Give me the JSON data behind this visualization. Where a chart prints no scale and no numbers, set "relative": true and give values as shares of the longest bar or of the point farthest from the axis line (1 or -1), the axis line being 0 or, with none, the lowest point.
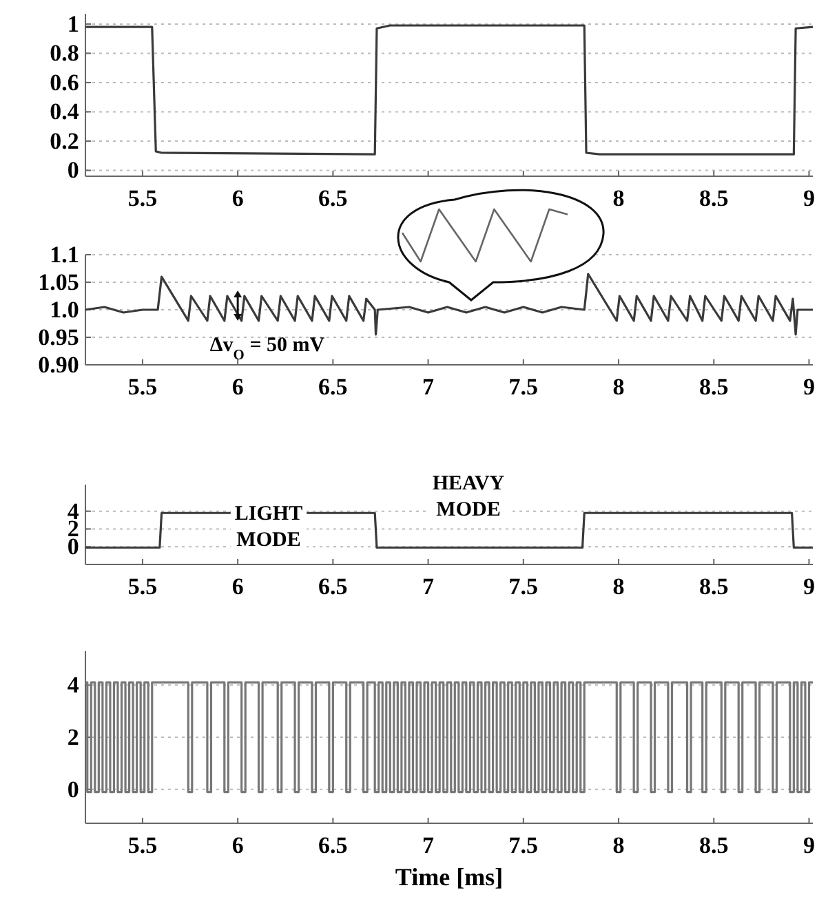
{
  "chart_data": [
    {
      "type": "line",
      "xlim": [
        5.2,
        9.02
      ],
      "xticks": [
        5.5,
        6,
        6.5,
        {
          "value": 7,
          "label": null
        },
        {
          "value": 7.5,
          "label": null
        },
        8,
        8.5,
        9
      ],
      "ylim": [
        -0.04,
        1.07
      ],
      "yticks": [
        0,
        0.2,
        0.4,
        0.6,
        0.8,
        1
      ],
      "grid": "y",
      "series": [
        {
          "color": "#3a3a3a",
          "x": [
            5.2,
            5.55,
            5.57,
            5.6,
            6.72,
            6.73,
            6.8,
            7.82,
            7.83,
            7.9,
            8.92,
            8.93,
            9.02
          ],
          "values": [
            0.98,
            0.98,
            0.13,
            0.12,
            0.11,
            0.97,
            0.99,
            0.99,
            0.12,
            0.11,
            0.11,
            0.97,
            0.98
          ]
        }
      ]
    },
    {
      "type": "line",
      "xlim": [
        5.2,
        9.02
      ],
      "xticks": [
        5.5,
        6,
        6.5,
        7,
        7.5,
        8,
        8.5,
        9
      ],
      "ylim": [
        0.9,
        1.1
      ],
      "yticks": [
        {
          "value": 0.9,
          "label": "0.90"
        },
        0.95,
        {
          "value": 1.0,
          "label": "1.0"
        },
        1.05,
        1.1
      ],
      "grid": "y",
      "annotations": [
        "Δv$_{O}$ = 50 mV"
      ],
      "series": [
        {
          "color": "#3a3a3a",
          "x": [
            5.2,
            5.3,
            5.4,
            5.5,
            5.58,
            5.6,
            5.74,
            5.755,
            5.84,
            5.855,
            5.93,
            5.945,
            6.02,
            6.035,
            6.11,
            6.125,
            6.21,
            6.225,
            6.3,
            6.315,
            6.39,
            6.405,
            6.48,
            6.495,
            6.57,
            6.585,
            6.66,
            6.675,
            6.72,
            6.725,
            6.735,
            6.9,
            7.0,
            7.1,
            7.2,
            7.3,
            7.4,
            7.5,
            7.6,
            7.7,
            7.82,
            7.84,
            7.99,
            8.005,
            8.08,
            8.095,
            8.17,
            8.185,
            8.26,
            8.275,
            8.36,
            8.375,
            8.44,
            8.455,
            8.54,
            8.555,
            8.63,
            8.645,
            8.72,
            8.735,
            8.81,
            8.825,
            8.9,
            8.915,
            8.93,
            8.94,
            9.02
          ],
          "values": [
            1.0,
            1.005,
            0.995,
            1.0,
            1.0,
            1.06,
            0.98,
            1.025,
            0.98,
            1.025,
            0.98,
            1.025,
            0.98,
            1.025,
            0.98,
            1.025,
            0.98,
            1.025,
            0.98,
            1.025,
            0.98,
            1.025,
            0.98,
            1.025,
            0.98,
            1.025,
            0.98,
            1.02,
            1.0,
            0.955,
            1.0,
            1.005,
            0.995,
            1.005,
            0.995,
            1.005,
            0.995,
            1.005,
            0.995,
            1.005,
            1.0,
            1.065,
            0.98,
            1.025,
            0.98,
            1.025,
            0.98,
            1.025,
            0.98,
            1.025,
            0.98,
            1.025,
            0.98,
            1.025,
            0.98,
            1.025,
            0.98,
            1.025,
            0.98,
            1.025,
            0.98,
            1.025,
            0.98,
            1.02,
            0.955,
            1.0,
            1.0
          ]
        }
      ]
    },
    {
      "type": "line",
      "xlim": [
        5.2,
        9.02
      ],
      "xticks": [
        5.5,
        6,
        6.5,
        7,
        7.5,
        8,
        8.5,
        9
      ],
      "ylim": [
        -2,
        7
      ],
      "yticks": [
        0,
        2,
        4
      ],
      "grid": "y",
      "annotations": [
        "LIGHT MODE",
        "HEAVY MODE"
      ],
      "series": [
        {
          "color": "#3a3a3a",
          "x": [
            5.2,
            5.59,
            5.6,
            6.72,
            6.73,
            7.81,
            7.82,
            8.91,
            8.92,
            9.02
          ],
          "values": [
            -0.1,
            -0.1,
            3.8,
            3.8,
            -0.1,
            -0.1,
            3.8,
            3.8,
            -0.1,
            -0.1
          ]
        }
      ]
    },
    {
      "type": "step",
      "xlim": [
        5.2,
        9.02
      ],
      "xticks": [
        5.5,
        6,
        6.5,
        7,
        7.5,
        8,
        8.5,
        9
      ],
      "ylim": [
        -1.3,
        5.3
      ],
      "yticks": [
        0,
        2,
        4
      ],
      "grid": "y",
      "xlabel": "Time  [ms]",
      "series": [
        {
          "color": "#777777",
          "x": [
            5.2,
            5.21,
            5.23,
            5.25,
            5.27,
            5.29,
            5.31,
            5.33,
            5.35,
            5.37,
            5.39,
            5.41,
            5.43,
            5.45,
            5.47,
            5.49,
            5.51,
            5.53,
            5.55,
            5.74,
            5.76,
            5.84,
            5.86,
            5.93,
            5.95,
            6.02,
            6.04,
            6.11,
            6.13,
            6.21,
            6.23,
            6.3,
            6.32,
            6.39,
            6.41,
            6.48,
            6.5,
            6.57,
            6.59,
            6.66,
            6.68,
            6.72,
            6.74,
            6.76,
            6.78,
            6.8,
            6.82,
            6.84,
            6.86,
            6.88,
            6.9,
            6.92,
            6.94,
            6.96,
            6.98,
            7,
            7.02,
            7.04,
            7.06,
            7.08,
            7.1,
            7.12,
            7.14,
            7.16,
            7.18,
            7.2,
            7.22,
            7.24,
            7.26,
            7.28,
            7.3,
            7.32,
            7.34,
            7.36,
            7.38,
            7.4,
            7.42,
            7.44,
            7.46,
            7.48,
            7.5,
            7.52,
            7.54,
            7.56,
            7.58,
            7.6,
            7.62,
            7.64,
            7.66,
            7.68,
            7.7,
            7.72,
            7.74,
            7.76,
            7.78,
            7.8,
            7.82,
            7.99,
            8.01,
            8.08,
            8.1,
            8.17,
            8.19,
            8.26,
            8.28,
            8.36,
            8.38,
            8.44,
            8.46,
            8.54,
            8.56,
            8.63,
            8.65,
            8.72,
            8.74,
            8.81,
            8.83,
            8.9,
            8.92,
            8.94,
            8.96,
            8.98,
            9.0,
            9.02
          ],
          "values": [
            4.1,
            -0.1,
            4.1,
            -0.1,
            4.1,
            -0.1,
            4.1,
            -0.1,
            4.1,
            -0.1,
            4.1,
            -0.1,
            4.1,
            -0.1,
            4.1,
            -0.1,
            4.1,
            -0.1,
            4.1,
            -0.1,
            4.1,
            -0.1,
            4.1,
            -0.1,
            4.1,
            -0.1,
            4.1,
            -0.1,
            4.1,
            -0.1,
            4.1,
            -0.1,
            4.1,
            -0.1,
            4.1,
            -0.1,
            4.1,
            -0.1,
            4.1,
            -0.1,
            4.1,
            -0.1,
            4.1,
            -0.1,
            4.1,
            -0.1,
            4.1,
            -0.1,
            4.1,
            -0.1,
            4.1,
            -0.1,
            4.1,
            -0.1,
            4.1,
            -0.1,
            4.1,
            -0.1,
            4.1,
            -0.1,
            4.1,
            -0.1,
            4.1,
            -0.1,
            4.1,
            -0.1,
            4.1,
            -0.1,
            4.1,
            -0.1,
            4.1,
            -0.1,
            4.1,
            -0.1,
            4.1,
            -0.1,
            4.1,
            -0.1,
            4.1,
            -0.1,
            4.1,
            -0.1,
            4.1,
            -0.1,
            4.1,
            -0.1,
            4.1,
            -0.1,
            4.1,
            -0.1,
            4.1,
            -0.1,
            4.1,
            -0.1,
            4.1,
            -0.1,
            4.1,
            -0.1,
            4.1,
            -0.1,
            4.1,
            -0.1,
            4.1,
            -0.1,
            4.1,
            -0.1,
            4.1,
            -0.1,
            4.1,
            -0.1,
            4.1,
            -0.1,
            4.1,
            -0.1,
            4.1,
            -0.1,
            4.1,
            -0.1,
            4.1,
            -0.1,
            4.1,
            -0.1,
            4.1,
            4.1
          ]
        }
      ]
    },
    {
      "type": "line",
      "relative": true,
      "categories": [
        null,
        null,
        null,
        null,
        null,
        null,
        null,
        null,
        null,
        null
      ],
      "series": [
        {
          "color": "#666666",
          "values": [
            0.55,
            0.0,
            1.0,
            0.5,
            0.0,
            1.0,
            0.5,
            0.0,
            1.0,
            0.9
          ]
        }
      ]
    }
  ]
}
